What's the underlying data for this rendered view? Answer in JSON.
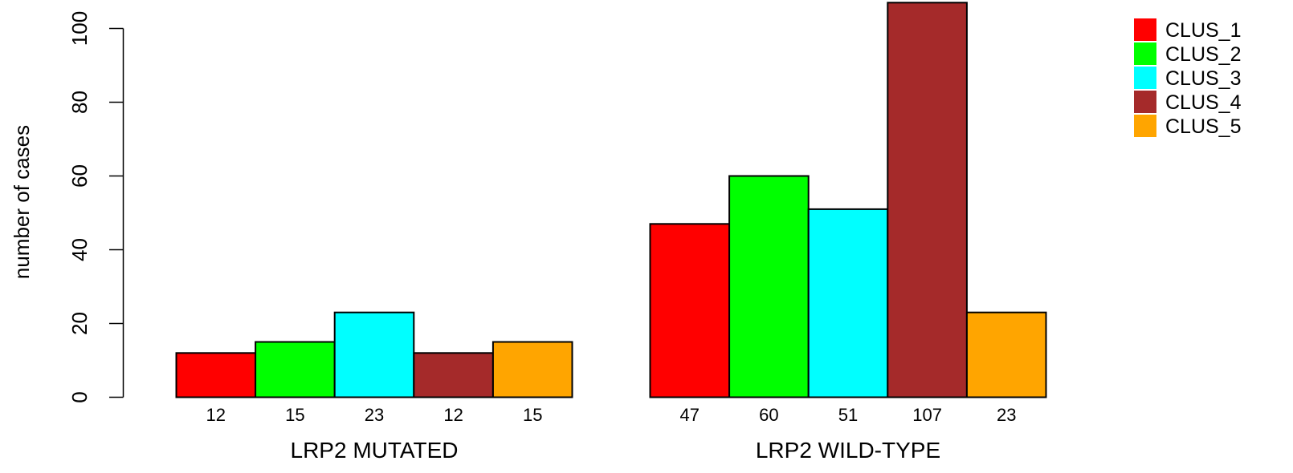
{
  "chart_data": {
    "type": "bar",
    "ylabel": "number of cases",
    "ylim": [
      0,
      107
    ],
    "yticks": [
      0,
      20,
      40,
      60,
      80,
      100
    ],
    "groups": [
      "LRP2 MUTATED",
      "LRP2 WILD-TYPE"
    ],
    "series": [
      {
        "name": "CLUS_1",
        "color": "#ff0000",
        "values": [
          12,
          47
        ]
      },
      {
        "name": "CLUS_2",
        "color": "#00ff00",
        "values": [
          15,
          60
        ]
      },
      {
        "name": "CLUS_3",
        "color": "#00ffff",
        "values": [
          23,
          51
        ]
      },
      {
        "name": "CLUS_4",
        "color": "#a52a2a",
        "values": [
          12,
          107
        ]
      },
      {
        "name": "CLUS_5",
        "color": "#ffa500",
        "values": [
          15,
          23
        ]
      }
    ],
    "grid": false,
    "legend_position": "top-right"
  }
}
